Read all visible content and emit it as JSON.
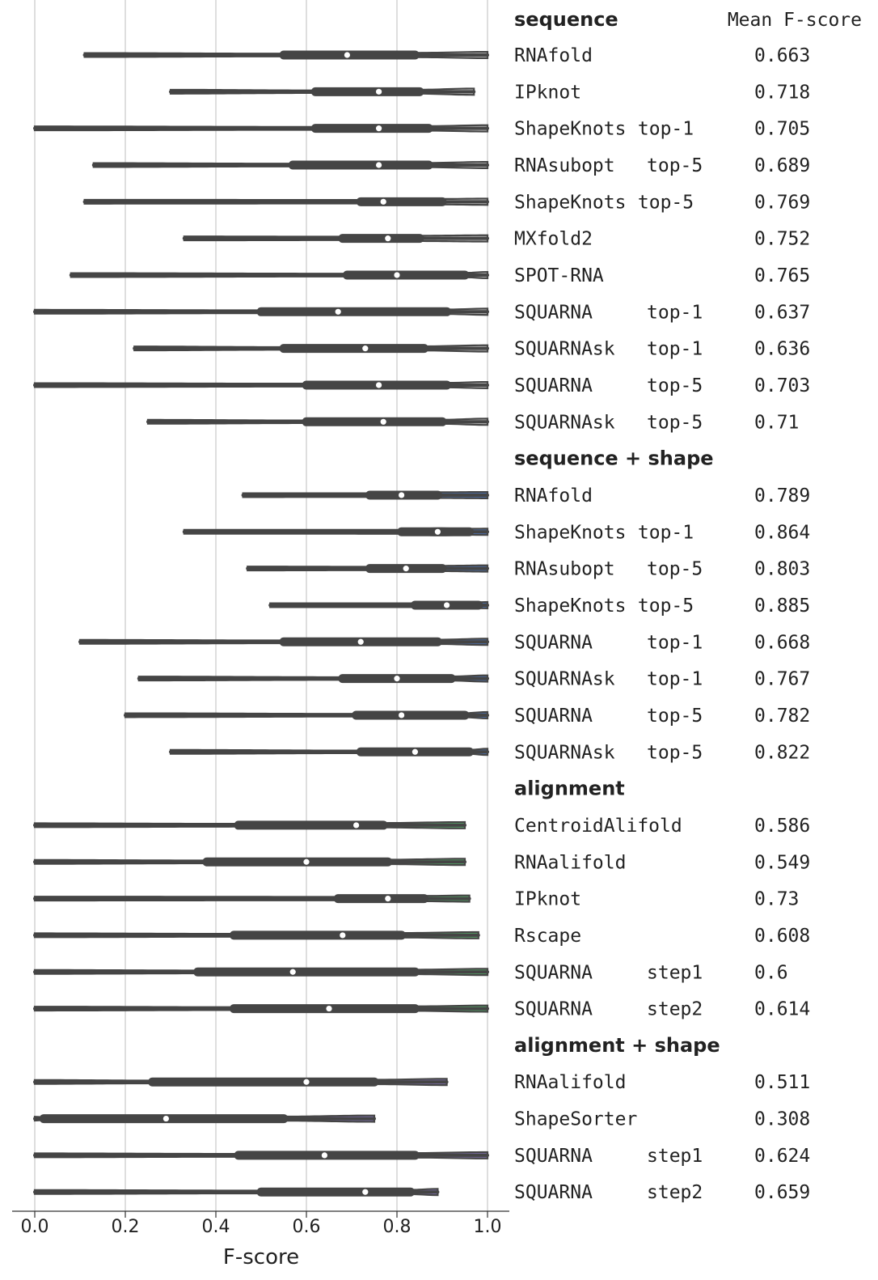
{
  "chart_data": {
    "type": "violin",
    "orientation": "horizontal",
    "xlabel": "F-score",
    "xlim": [
      0,
      1
    ],
    "xticks": [
      "0.0",
      "0.2",
      "0.4",
      "0.6",
      "0.8",
      "1.0"
    ],
    "grid": true,
    "table_header": {
      "col1": "sequence",
      "col2": "Mean F-score"
    },
    "colors": {
      "sequence": "#c8c8c8",
      "sequence + shape": "#4c72b0",
      "alignment": "#55a868",
      "alignment + shape": "#8172b2",
      "violin_outline": "#454545",
      "median_marker": "#ffffff"
    },
    "groups": [
      {
        "name": "sequence",
        "rows": [
          {
            "tool": "RNAfold",
            "variant": "",
            "mean": "0.663",
            "min": 0.11,
            "q1": 0.55,
            "median": 0.69,
            "q3": 0.84,
            "max": 1.0
          },
          {
            "tool": "IPknot",
            "variant": "",
            "mean": "0.718",
            "min": 0.3,
            "q1": 0.62,
            "median": 0.76,
            "q3": 0.85,
            "max": 0.97
          },
          {
            "tool": "ShapeKnots",
            "variant": "top-1",
            "mean": "0.705",
            "min": 0.0,
            "q1": 0.62,
            "median": 0.76,
            "q3": 0.87,
            "max": 1.0
          },
          {
            "tool": "RNAsubopt",
            "variant": "top-5",
            "mean": "0.689",
            "min": 0.13,
            "q1": 0.57,
            "median": 0.76,
            "q3": 0.87,
            "max": 1.0
          },
          {
            "tool": "ShapeKnots",
            "variant": "top-5",
            "mean": "0.769",
            "min": 0.11,
            "q1": 0.72,
            "median": 0.77,
            "q3": 0.9,
            "max": 1.0
          },
          {
            "tool": "MXfold2",
            "variant": "",
            "mean": "0.752",
            "min": 0.33,
            "q1": 0.68,
            "median": 0.78,
            "q3": 0.85,
            "max": 1.0
          },
          {
            "tool": "SPOT-RNA",
            "variant": "",
            "mean": "0.765",
            "min": 0.08,
            "q1": 0.69,
            "median": 0.8,
            "q3": 0.95,
            "max": 1.0
          },
          {
            "tool": "SQUARNA",
            "variant": "top-1",
            "mean": "0.637",
            "min": 0.0,
            "q1": 0.5,
            "median": 0.67,
            "q3": 0.91,
            "max": 1.0
          },
          {
            "tool": "SQUARNAsk",
            "variant": "top-1",
            "mean": "0.636",
            "min": 0.22,
            "q1": 0.55,
            "median": 0.73,
            "q3": 0.86,
            "max": 1.0
          },
          {
            "tool": "SQUARNA",
            "variant": "top-5",
            "mean": "0.703",
            "min": 0.0,
            "q1": 0.6,
            "median": 0.76,
            "q3": 0.91,
            "max": 1.0
          },
          {
            "tool": "SQUARNAsk",
            "variant": "top-5",
            "mean": "0.71",
            "min": 0.25,
            "q1": 0.6,
            "median": 0.77,
            "q3": 0.9,
            "max": 1.0
          }
        ]
      },
      {
        "name": "sequence + shape",
        "rows": [
          {
            "tool": "RNAfold",
            "variant": "",
            "mean": "0.789",
            "min": 0.46,
            "q1": 0.74,
            "median": 0.81,
            "q3": 0.89,
            "max": 1.0
          },
          {
            "tool": "ShapeKnots",
            "variant": "top-1",
            "mean": "0.864",
            "min": 0.33,
            "q1": 0.81,
            "median": 0.89,
            "q3": 0.96,
            "max": 1.0
          },
          {
            "tool": "RNAsubopt",
            "variant": "top-5",
            "mean": "0.803",
            "min": 0.47,
            "q1": 0.74,
            "median": 0.82,
            "q3": 0.9,
            "max": 1.0
          },
          {
            "tool": "ShapeKnots",
            "variant": "top-5",
            "mean": "0.885",
            "min": 0.52,
            "q1": 0.84,
            "median": 0.91,
            "q3": 0.98,
            "max": 1.0
          },
          {
            "tool": "SQUARNA",
            "variant": "top-1",
            "mean": "0.668",
            "min": 0.1,
            "q1": 0.55,
            "median": 0.72,
            "q3": 0.89,
            "max": 1.0
          },
          {
            "tool": "SQUARNAsk",
            "variant": "top-1",
            "mean": "0.767",
            "min": 0.23,
            "q1": 0.68,
            "median": 0.8,
            "q3": 0.92,
            "max": 1.0
          },
          {
            "tool": "SQUARNA",
            "variant": "top-5",
            "mean": "0.782",
            "min": 0.2,
            "q1": 0.71,
            "median": 0.81,
            "q3": 0.95,
            "max": 1.0
          },
          {
            "tool": "SQUARNAsk",
            "variant": "top-5",
            "mean": "0.822",
            "min": 0.3,
            "q1": 0.72,
            "median": 0.84,
            "q3": 0.96,
            "max": 1.0
          }
        ]
      },
      {
        "name": "alignment",
        "rows": [
          {
            "tool": "CentroidAlifold",
            "variant": "",
            "mean": "0.586",
            "min": 0.0,
            "q1": 0.45,
            "median": 0.71,
            "q3": 0.77,
            "max": 0.95
          },
          {
            "tool": "RNAalifold",
            "variant": "",
            "mean": "0.549",
            "min": 0.0,
            "q1": 0.38,
            "median": 0.6,
            "q3": 0.78,
            "max": 0.95
          },
          {
            "tool": "IPknot",
            "variant": "",
            "mean": "0.73",
            "min": 0.0,
            "q1": 0.67,
            "median": 0.78,
            "q3": 0.86,
            "max": 0.96
          },
          {
            "tool": "Rscape",
            "variant": "",
            "mean": "0.608",
            "min": 0.0,
            "q1": 0.44,
            "median": 0.68,
            "q3": 0.81,
            "max": 0.98
          },
          {
            "tool": "SQUARNA",
            "variant": "step1",
            "mean": "0.6",
            "min": 0.0,
            "q1": 0.36,
            "median": 0.57,
            "q3": 0.84,
            "max": 1.0
          },
          {
            "tool": "SQUARNA",
            "variant": "step2",
            "mean": "0.614",
            "min": 0.0,
            "q1": 0.44,
            "median": 0.65,
            "q3": 0.84,
            "max": 1.0
          }
        ]
      },
      {
        "name": "alignment + shape",
        "rows": [
          {
            "tool": "RNAalifold",
            "variant": "",
            "mean": "0.511",
            "min": 0.0,
            "q1": 0.26,
            "median": 0.6,
            "q3": 0.75,
            "max": 0.91
          },
          {
            "tool": "ShapeSorter",
            "variant": "",
            "mean": "0.308",
            "min": 0.0,
            "q1": 0.02,
            "median": 0.29,
            "q3": 0.55,
            "max": 0.75
          },
          {
            "tool": "SQUARNA",
            "variant": "step1",
            "mean": "0.624",
            "min": 0.0,
            "q1": 0.45,
            "median": 0.64,
            "q3": 0.84,
            "max": 1.0
          },
          {
            "tool": "SQUARNA",
            "variant": "step2",
            "mean": "0.659",
            "min": 0.0,
            "q1": 0.5,
            "median": 0.73,
            "q3": 0.83,
            "max": 0.89
          }
        ]
      }
    ]
  }
}
